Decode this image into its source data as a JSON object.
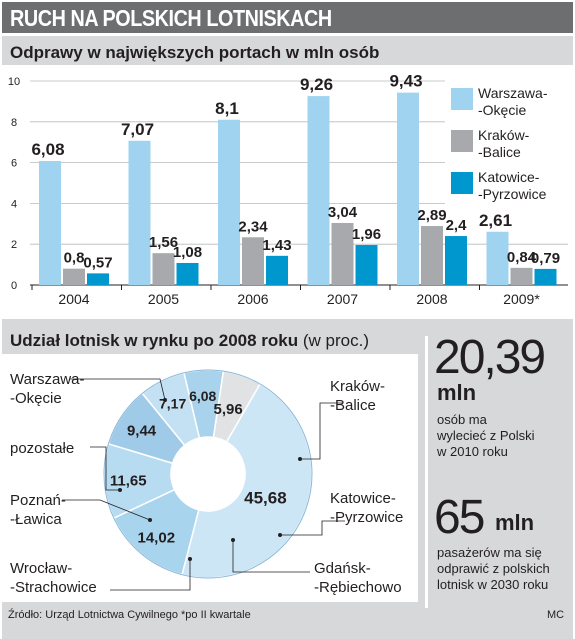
{
  "header": {
    "title": "RUCH NA POLSKICH LOTNISKACH"
  },
  "chart_data": [
    {
      "type": "bar",
      "title": "Odprawy w największych portach w mln osób",
      "categories": [
        "2004",
        "2005",
        "2006",
        "2007",
        "2008",
        "2009*"
      ],
      "series": [
        {
          "name": "Warszawa-Okęcie",
          "color": "#9fd3ef",
          "values": [
            6.08,
            7.07,
            8.1,
            9.26,
            9.43,
            2.61
          ]
        },
        {
          "name": "Kraków-Balice",
          "color": "#a7a9ac",
          "values": [
            0.8,
            1.56,
            2.34,
            3.04,
            2.89,
            0.84
          ]
        },
        {
          "name": "Katowice-Pyrzowice",
          "color": "#0097ce",
          "values": [
            0.57,
            1.08,
            1.43,
            1.96,
            2.4,
            0.79
          ]
        }
      ],
      "value_labels": [
        [
          "6,08",
          "7,07",
          "8,1",
          "9,26",
          "9,43",
          "2,61"
        ],
        [
          "0,8",
          "1,56",
          "2,34",
          "3,04",
          "2,89",
          "0,84"
        ],
        [
          "0,57",
          "1,08",
          "1,43",
          "1,96",
          "2,4",
          "0,79"
        ]
      ],
      "legend": [
        {
          "lines": [
            "Warszawa-",
            "-Okęcie"
          ],
          "color": "#9fd3ef"
        },
        {
          "lines": [
            "Kraków-",
            "-Balice"
          ],
          "color": "#a7a9ac"
        },
        {
          "lines": [
            "Katowice-",
            "-Pyrzowice"
          ],
          "color": "#0097ce"
        }
      ],
      "legend_position": "right",
      "ylim": [
        0,
        10
      ],
      "yticks": [
        0,
        2,
        4,
        6,
        8,
        10
      ],
      "grid": true
    },
    {
      "type": "pie",
      "title": "Udział lotnisk w rynku po 2008 roku",
      "title_unit": "(w proc.)",
      "donut": true,
      "slices": [
        {
          "name": "Warszawa-Okęcie",
          "label_lines": [
            "Warszawa-",
            "-Okęcie"
          ],
          "value": 45.68,
          "value_label": "45,68",
          "color": "#cde6f5"
        },
        {
          "name": "Kraków-Balice",
          "label_lines": [
            "Kraków-",
            "-Balice"
          ],
          "value": 14.02,
          "value_label": "14,02",
          "color": "#a9d4ee"
        },
        {
          "name": "Katowice-Pyrzowice",
          "label_lines": [
            "Katowice-",
            "-Pyrzowice"
          ],
          "value": 11.65,
          "value_label": "11,65",
          "color": "#b7dbf1"
        },
        {
          "name": "Gdańsk-Rębiechowo",
          "label_lines": [
            "Gdańsk-",
            "-Rębiechowo"
          ],
          "value": 9.44,
          "value_label": "9,44",
          "color": "#9fcbe9"
        },
        {
          "name": "Wrocław-Strachowice",
          "label_lines": [
            "Wrocław-",
            "-Strachowice"
          ],
          "value": 7.17,
          "value_label": "7,17",
          "color": "#c4e1f3"
        },
        {
          "name": "Poznań-Ławica",
          "label_lines": [
            "Poznań-",
            "-Ławica"
          ],
          "value": 6.08,
          "value_label": "6,08",
          "color": "#a9d3ec"
        },
        {
          "name": "pozostałe",
          "label_lines": [
            "pozostałe"
          ],
          "value": 5.96,
          "value_label": "5,96",
          "color": "#e1e2e3"
        }
      ]
    }
  ],
  "stats": [
    {
      "value": "20,39",
      "unit": "mln",
      "description": "osób ma\nwylecieć z Polski\nw 2010 roku"
    },
    {
      "value": "65",
      "unit": "mln",
      "description": "pasażerów ma się\nodprawić z polskich\nlotnisk w 2030 roku"
    }
  ],
  "footer": {
    "source": "Źródło: Urząd Lotnictwa Cywilnego   *po II kwartale",
    "credit": "MC"
  }
}
